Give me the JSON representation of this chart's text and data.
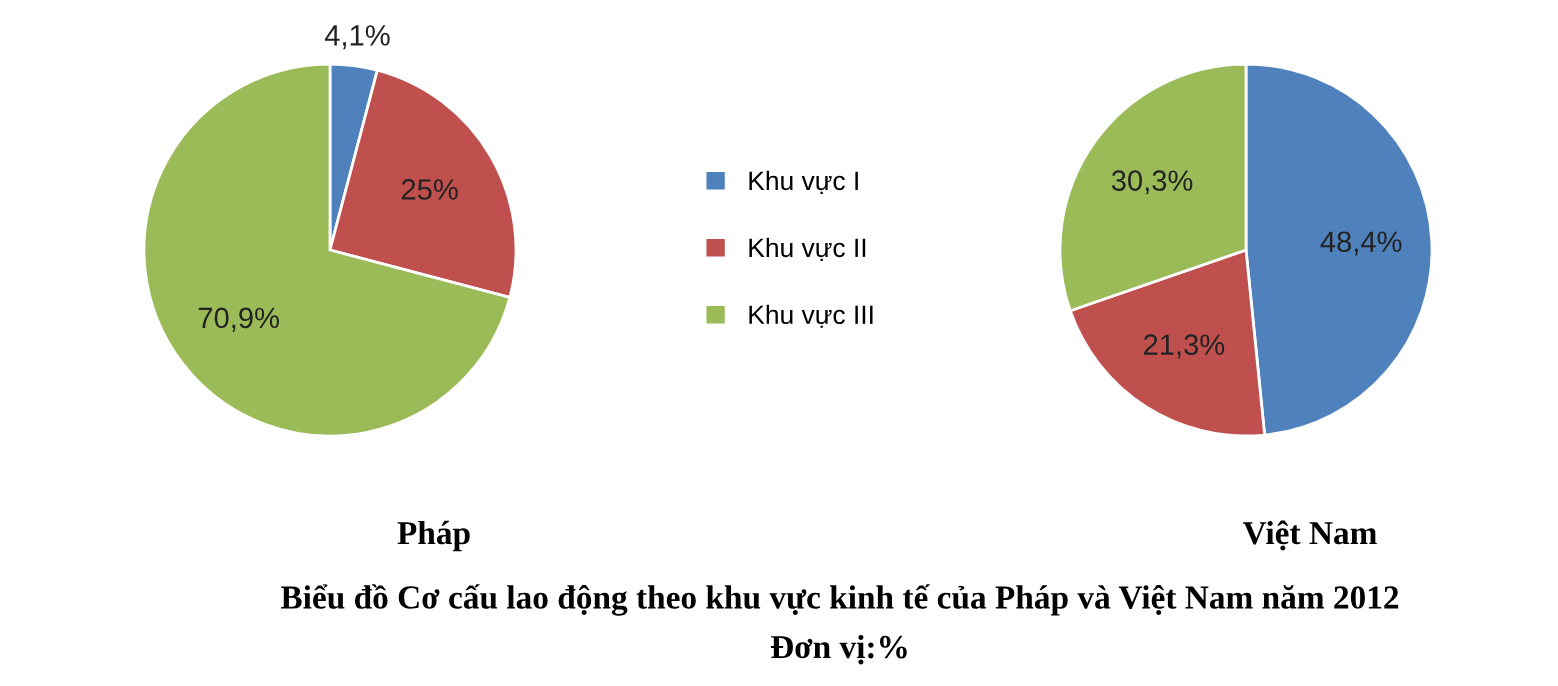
{
  "chart_data": [
    {
      "type": "pie",
      "title": "Pháp",
      "categories": [
        "Khu vực I",
        "Khu vực II",
        "Khu vực III"
      ],
      "values": [
        4.1,
        25,
        70.9
      ],
      "value_labels": [
        "4,1%",
        "25%",
        "70,9%"
      ],
      "colors": [
        "#4f81bd",
        "#c0504d",
        "#9bbb59"
      ],
      "legend": "right",
      "annotations": [
        "Biểu đồ Cơ cấu lao động theo khu vực kinh tế của Pháp và Việt Nam năm 2012",
        "Đơn vị:%"
      ]
    },
    {
      "type": "pie",
      "title": "Việt Nam",
      "categories": [
        null,
        null,
        null
      ],
      "values": [
        48.4,
        21.3,
        30.3
      ],
      "value_labels": [
        "48,4%",
        "21,3%",
        "30,3%"
      ],
      "colors": [
        "#4f81bd",
        "#c0504d",
        "#9bbb59"
      ]
    }
  ]
}
